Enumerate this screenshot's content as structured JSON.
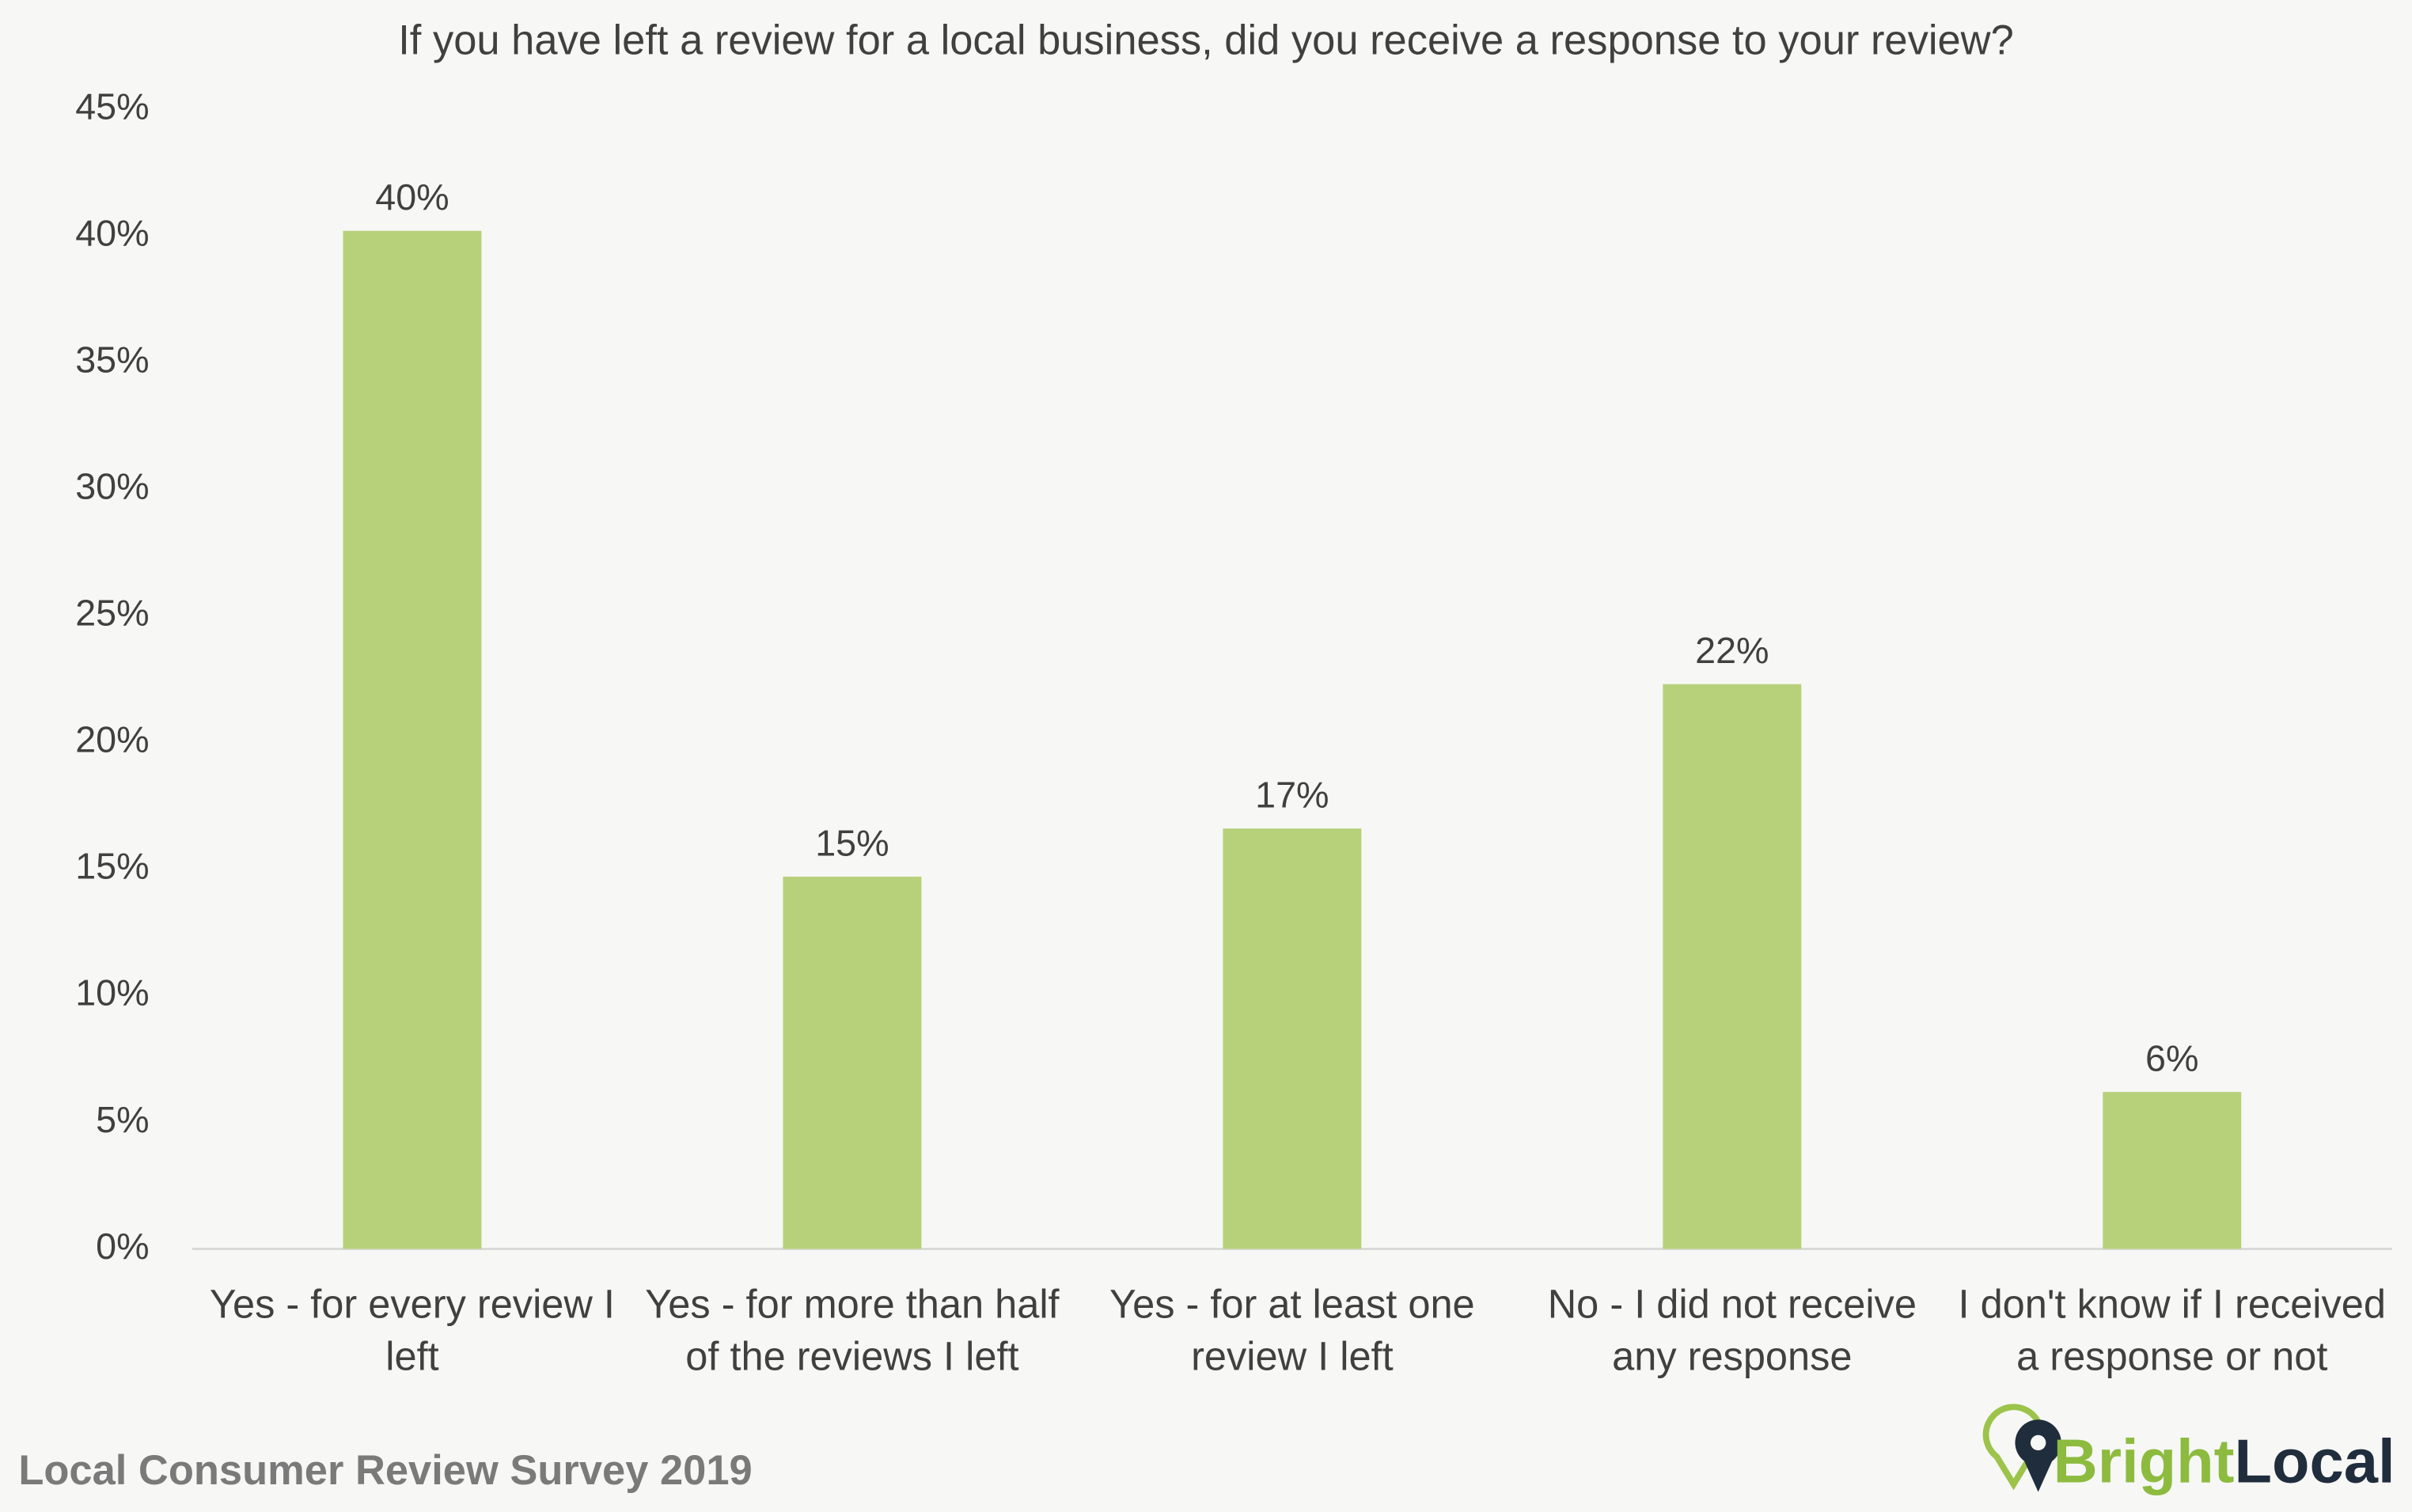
{
  "chart_data": {
    "type": "bar",
    "title": "If you have left a review for a local business, did you receive a response to your review?",
    "categories": [
      "Yes - for every review I left",
      "Yes - for more than half of the reviews I left",
      "Yes - for at least one review I left",
      "No - I did not receive any response",
      "I don't know if I received a response or not"
    ],
    "values": [
      40.2,
      14.7,
      16.6,
      22.3,
      6.2
    ],
    "value_labels": [
      "40%",
      "15%",
      "17%",
      "22%",
      "6%"
    ],
    "color": "#b7d17b",
    "ylim": [
      0,
      45
    ],
    "yticks": [
      {
        "value": 0,
        "label": "0%"
      },
      {
        "value": 5,
        "label": "5%"
      },
      {
        "value": 10,
        "label": "10%"
      },
      {
        "value": 15,
        "label": "15%"
      },
      {
        "value": 20,
        "label": "20%"
      },
      {
        "value": 25,
        "label": "25%"
      },
      {
        "value": 30,
        "label": "30%"
      },
      {
        "value": 35,
        "label": "35%"
      },
      {
        "value": 40,
        "label": "40%"
      },
      {
        "value": 45,
        "label": "45%"
      }
    ],
    "grid": false,
    "footer": "Local Consumer Review Survey 2019",
    "logo": {
      "bright": "Bright",
      "local": "Local"
    }
  }
}
